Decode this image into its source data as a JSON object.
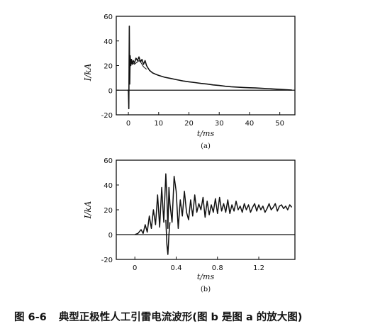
{
  "chart_data": [
    {
      "type": "line",
      "panel_label": "(a)",
      "ylabel": "I/kA",
      "xlabel": "t/ms",
      "xlim": [
        -4,
        55
      ],
      "ylim": [
        -20,
        60
      ],
      "xticks": [
        0,
        10,
        20,
        30,
        40,
        50
      ],
      "yticks": [
        -20,
        0,
        20,
        40,
        60
      ],
      "grid": false,
      "series": [
        {
          "x": [
            -0.3,
            0,
            0.15,
            0.3,
            0.45,
            0.6,
            0.8,
            1.0,
            1.3,
            1.6,
            2.0,
            2.5,
            3.0,
            3.5,
            4.0,
            4.5,
            5.0,
            5.5,
            6.0,
            6.5,
            7.0,
            8.0,
            9.0,
            10,
            12,
            14,
            16,
            18,
            20,
            22,
            24,
            26,
            28,
            30,
            32,
            34,
            36,
            38,
            40,
            42,
            44,
            46,
            48,
            50,
            52,
            54
          ],
          "y": [
            0,
            0,
            -15,
            52,
            5,
            28,
            20,
            25,
            21,
            24,
            22,
            26,
            24,
            27,
            23,
            25,
            21,
            24,
            20,
            18,
            16,
            14,
            13,
            12,
            10.5,
            9.5,
            8.5,
            7.5,
            6.8,
            6.2,
            5.5,
            5,
            4.3,
            3.8,
            3.2,
            2.8,
            2.5,
            2.2,
            2,
            1.8,
            1.5,
            1.3,
            1,
            0.7,
            0.4,
            0.1
          ]
        },
        {
          "x": [
            0.2,
            0.5,
            1.0,
            1.5,
            2.0,
            2.5,
            3.0,
            3.5,
            4.0,
            4.5,
            5.0,
            5.5,
            6.0
          ],
          "y": [
            18,
            22,
            24,
            22,
            21,
            22,
            23,
            24,
            23,
            21,
            19,
            18,
            17
          ]
        }
      ]
    },
    {
      "type": "line",
      "panel_label": "(b)",
      "ylabel": "I/kA",
      "xlabel": "t/ms",
      "xlim": [
        -0.18,
        1.55
      ],
      "ylim": [
        -20,
        60
      ],
      "xticks": [
        0,
        0.4,
        0.8,
        1.2
      ],
      "yticks": [
        -20,
        0,
        20,
        40,
        60
      ],
      "grid": false,
      "series": [
        {
          "x": [
            0.0,
            0.03,
            0.06,
            0.08,
            0.1,
            0.12,
            0.14,
            0.16,
            0.18,
            0.2,
            0.22,
            0.24,
            0.26,
            0.28,
            0.3,
            0.31,
            0.32,
            0.33,
            0.34,
            0.36,
            0.38,
            0.4,
            0.42,
            0.44,
            0.46,
            0.48,
            0.5,
            0.52,
            0.54,
            0.56,
            0.58,
            0.6,
            0.62,
            0.64,
            0.66,
            0.68,
            0.7,
            0.72,
            0.74,
            0.76,
            0.78,
            0.8,
            0.82,
            0.84,
            0.86,
            0.88,
            0.9,
            0.92,
            0.94,
            0.96,
            0.98,
            1.0,
            1.02,
            1.04,
            1.06,
            1.08,
            1.1,
            1.12,
            1.14,
            1.16,
            1.18,
            1.2,
            1.22,
            1.24,
            1.26,
            1.28,
            1.3,
            1.32,
            1.34,
            1.36,
            1.38,
            1.4,
            1.42,
            1.44,
            1.46,
            1.48,
            1.5,
            1.52
          ],
          "y": [
            0,
            1,
            4,
            1,
            8,
            2,
            15,
            5,
            20,
            8,
            32,
            6,
            38,
            10,
            49,
            30,
            5,
            38,
            25,
            10,
            47,
            35,
            5,
            28,
            15,
            35,
            18,
            12,
            28,
            15,
            32,
            18,
            25,
            20,
            30,
            14,
            27,
            16,
            24,
            18,
            29,
            17,
            30,
            19,
            25,
            18,
            28,
            17,
            24,
            19,
            27,
            20,
            23,
            18,
            25,
            20,
            24,
            18,
            22,
            25,
            19,
            24,
            20,
            23,
            18,
            21,
            25,
            20,
            22,
            25,
            19,
            23,
            24,
            21,
            23,
            20,
            24,
            22
          ]
        },
        {
          "x": [
            0.3,
            0.31,
            0.32,
            0.33,
            0.34
          ],
          "y": [
            12,
            -8,
            -16,
            0,
            10
          ]
        }
      ]
    }
  ],
  "caption": {
    "number": "图 6-6",
    "text": "典型正极性人工引雷电流波形(图 b 是图 a 的放大图)"
  }
}
